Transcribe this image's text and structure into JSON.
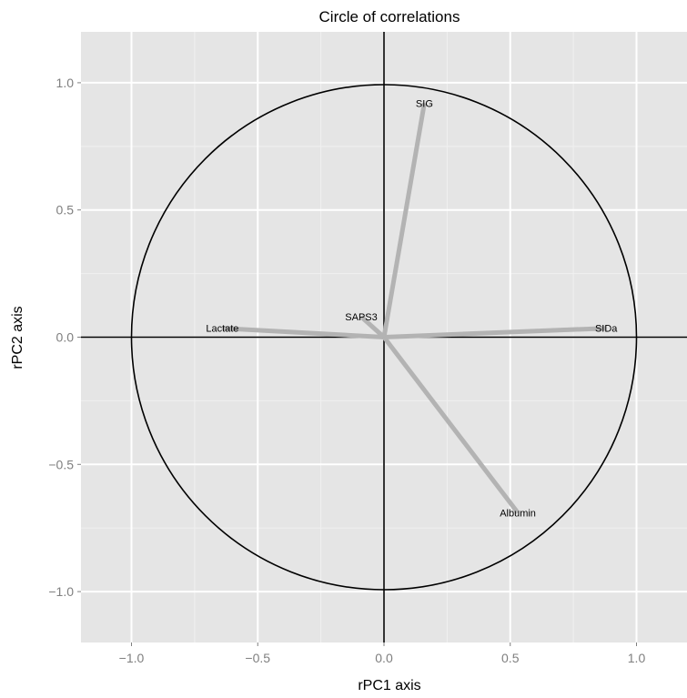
{
  "chart_data": {
    "type": "scatter",
    "title": "Circle of correlations",
    "xlabel": "rPC1 axis",
    "ylabel": "rPC2 axis",
    "xlim": [
      -1.2,
      1.2
    ],
    "ylim": [
      -1.2,
      1.2
    ],
    "x_ticks": [
      -1.0,
      -0.5,
      0.0,
      0.5,
      1.0
    ],
    "y_ticks": [
      -1.0,
      -0.5,
      0.0,
      0.5,
      1.0
    ],
    "x_tick_labels": [
      "−1.0",
      "−0.5",
      "0.0",
      "0.5",
      "1.0"
    ],
    "y_tick_labels": [
      "−1.0",
      "−0.5",
      "0.0",
      "0.5",
      "1.0"
    ],
    "grid": true,
    "unit_circle": true,
    "colors": {
      "panel": "#e5e5e5",
      "grid_major": "#ffffff",
      "grid_minor": "#f0f0f0",
      "vector": "#b3b3b3",
      "circle": "#000000"
    },
    "vectors": [
      {
        "name": "SIG",
        "x": 0.16,
        "y": 0.92
      },
      {
        "name": "SAPS3",
        "x": -0.09,
        "y": 0.08
      },
      {
        "name": "Lactate",
        "x": -0.64,
        "y": 0.035
      },
      {
        "name": "SIDa",
        "x": 0.88,
        "y": 0.035
      },
      {
        "name": "Albumin",
        "x": 0.53,
        "y": -0.69
      }
    ]
  }
}
